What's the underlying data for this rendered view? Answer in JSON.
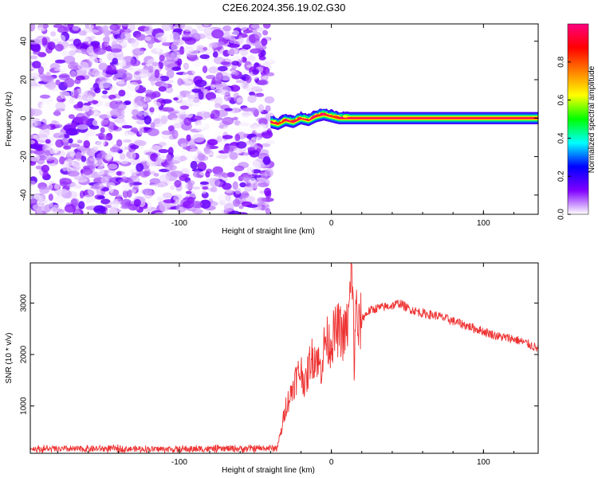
{
  "title": "C2E6.2024.356.19.02.G30",
  "chart_data": [
    {
      "type": "heatmap",
      "xlabel": "Height of straight line (km)",
      "ylabel": "Frequency (Hz)",
      "xlim": [
        -198,
        136
      ],
      "ylim": [
        -50,
        49
      ],
      "xticks": [
        -100,
        0,
        100
      ],
      "xtick_labels": [
        "-100",
        "0",
        "100"
      ],
      "yticks": [
        -40,
        -20,
        0,
        20,
        40
      ],
      "ytick_labels": [
        "-40",
        "-20",
        "0",
        "20",
        "40"
      ],
      "noise_region_x": [
        -198,
        -40
      ],
      "ridge": {
        "x": [
          -40,
          -35,
          -30,
          -25,
          -20,
          -15,
          -10,
          -5,
          0,
          5,
          10,
          50,
          100,
          136
        ],
        "y": [
          -2,
          -3,
          -1,
          -2,
          0,
          -1,
          1,
          2,
          1,
          0,
          0,
          0,
          0,
          0
        ],
        "peak_amplitude": 1.0
      },
      "colorbar": {
        "label": "Normalized spectral amplitude",
        "range": [
          0,
          1
        ],
        "ticks": [
          0.0,
          0.2,
          0.4,
          0.6,
          0.8
        ],
        "tick_labels": [
          "0.0",
          "0.2",
          "0.4",
          "0.6",
          "0.8"
        ],
        "colors": [
          "#ffffff",
          "#8000ff",
          "#0000ff",
          "#00ffff",
          "#00ff00",
          "#ffff00",
          "#ff8000",
          "#ff0000",
          "#ff0080"
        ]
      },
      "grid": false
    },
    {
      "type": "line",
      "xlabel": "Height of straight line (km)",
      "ylabel": "SNR (10 * v/v)",
      "xlim": [
        -198,
        136
      ],
      "ylim": [
        80,
        3780
      ],
      "xticks": [
        -100,
        0,
        100
      ],
      "xtick_labels": [
        "-100",
        "0",
        "100"
      ],
      "yticks": [
        1000,
        2000,
        3000
      ],
      "ytick_labels": [
        "1000",
        "2000",
        "3000"
      ],
      "series": [
        {
          "color": "#ee3333",
          "x": [
            -198,
            -180,
            -160,
            -140,
            -120,
            -100,
            -80,
            -60,
            -45,
            -36,
            -33,
            -30,
            -27,
            -24,
            -20,
            -17,
            -14,
            -10,
            -7,
            -4,
            -1,
            2,
            5,
            8,
            11,
            13,
            14,
            15,
            16,
            17,
            20,
            25,
            30,
            40,
            45,
            50,
            60,
            70,
            80,
            90,
            100,
            110,
            120,
            130,
            136
          ],
          "y": [
            170,
            160,
            165,
            170,
            160,
            160,
            165,
            170,
            175,
            180,
            500,
            1000,
            1200,
            1500,
            1700,
            1400,
            1900,
            2000,
            1700,
            2300,
            2200,
            2400,
            2500,
            2350,
            2600,
            3400,
            3740,
            1400,
            3300,
            2400,
            2700,
            2850,
            2900,
            2950,
            3000,
            2900,
            2800,
            2750,
            2650,
            2550,
            2450,
            2350,
            2300,
            2200,
            2100
          ]
        }
      ],
      "grid": false
    }
  ]
}
